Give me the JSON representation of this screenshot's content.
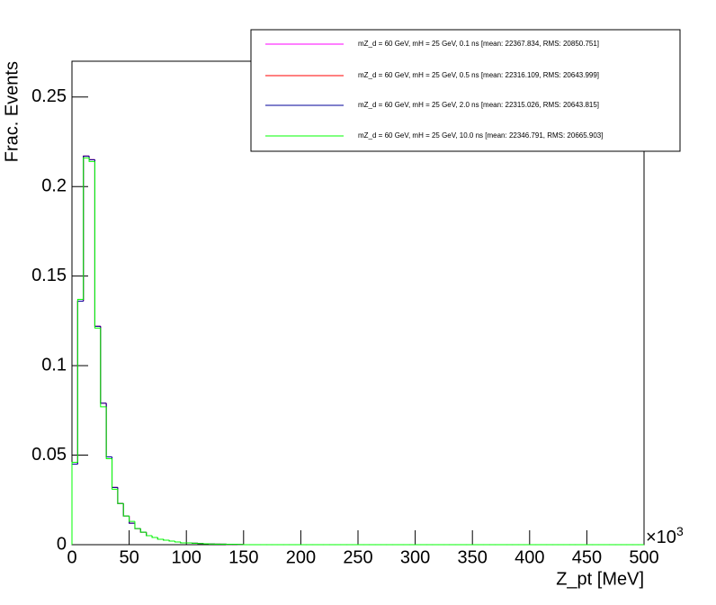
{
  "chart_data": {
    "type": "histogram",
    "x_label": "Z_pt [MeV]",
    "y_label": "Frac. Events",
    "x_scale_label": {
      "base": "×10",
      "exponent": "3"
    },
    "xlim": [
      0,
      500
    ],
    "xticks": [
      0,
      50,
      100,
      150,
      200,
      250,
      300,
      350,
      400,
      450,
      500
    ],
    "ylim": [
      0,
      0.27
    ],
    "yticks": [
      0,
      0.05,
      0.1,
      0.15,
      0.2,
      0.25
    ],
    "bins": [
      0,
      5,
      10,
      15,
      20,
      25,
      30,
      35,
      40,
      45,
      50,
      55,
      60,
      65,
      70,
      75,
      80,
      85,
      90,
      95,
      100,
      105,
      110,
      115,
      120,
      125,
      130,
      135,
      140,
      145,
      150,
      155,
      160,
      165,
      170,
      175,
      180,
      185,
      190,
      195,
      200,
      205,
      210,
      215,
      220,
      225,
      230,
      235,
      240,
      245,
      250,
      255,
      260,
      265,
      270,
      275,
      280,
      285,
      290,
      295,
      300,
      305,
      310,
      315,
      320,
      325,
      330,
      335,
      340,
      345,
      350,
      355,
      360,
      365,
      370,
      375,
      380,
      385,
      390,
      395,
      400,
      405,
      410,
      415,
      420,
      425,
      430,
      435,
      440,
      445,
      450,
      455,
      460,
      465,
      470,
      475,
      480,
      485,
      490,
      495,
      500
    ],
    "series": [
      {
        "name": "mZ_d = 60 GeV, mH = 25 GeV, 0.1 ns [mean: 22367.834, RMS: 20850.751]",
        "color": "#ff00ff",
        "values": [
          0.045,
          0.136,
          0.217,
          0.215,
          0.122,
          0.079,
          0.049,
          0.032,
          0.023,
          0.016,
          0.012,
          0.009,
          0.007,
          0.005,
          0.004,
          0.003,
          0.0025,
          0.002,
          0.0015,
          0.001,
          0.001,
          0.0008,
          0.0006,
          0.0005,
          0.0004,
          0.0003,
          0.0003,
          0.0002,
          0.0002,
          0.0001,
          0,
          0,
          0,
          0,
          0,
          0,
          0,
          0,
          0,
          0,
          0,
          0,
          0,
          0,
          0,
          0,
          0,
          0,
          0,
          0,
          0,
          0,
          0,
          0,
          0,
          0,
          0,
          0,
          0,
          0,
          0,
          0,
          0,
          0,
          0,
          0,
          0,
          0,
          0,
          0,
          0,
          0,
          0,
          0,
          0,
          0,
          0,
          0,
          0,
          0,
          0,
          0,
          0,
          0,
          0,
          0,
          0,
          0,
          0,
          0,
          0,
          0,
          0,
          0,
          0,
          0,
          0,
          0,
          0,
          0
        ]
      },
      {
        "name": "mZ_d = 60 GeV, mH = 25 GeV, 0.5 ns [mean: 22316.109, RMS: 20643.999]",
        "color": "#ff0000",
        "values": [
          0.045,
          0.136,
          0.217,
          0.215,
          0.122,
          0.079,
          0.049,
          0.032,
          0.023,
          0.016,
          0.012,
          0.009,
          0.007,
          0.005,
          0.004,
          0.003,
          0.0025,
          0.002,
          0.0015,
          0.001,
          0.001,
          0.0008,
          0.0006,
          0.0005,
          0.0004,
          0.0003,
          0.0003,
          0.0002,
          0.0002,
          0.0001,
          0,
          0,
          0,
          0,
          0,
          0,
          0,
          0,
          0,
          0,
          0,
          0,
          0,
          0,
          0,
          0,
          0,
          0,
          0,
          0,
          0,
          0,
          0,
          0,
          0,
          0,
          0,
          0,
          0,
          0,
          0,
          0,
          0,
          0,
          0,
          0,
          0,
          0,
          0,
          0,
          0,
          0,
          0,
          0,
          0,
          0,
          0,
          0,
          0,
          0,
          0,
          0,
          0,
          0,
          0,
          0,
          0,
          0,
          0,
          0,
          0,
          0,
          0,
          0,
          0,
          0,
          0,
          0,
          0,
          0
        ]
      },
      {
        "name": "mZ_d = 60 GeV, mH = 25 GeV, 2.0 ns [mean: 22315.026, RMS: 20643.815]",
        "color": "#000099",
        "values": [
          0.045,
          0.136,
          0.217,
          0.215,
          0.122,
          0.079,
          0.049,
          0.032,
          0.023,
          0.016,
          0.012,
          0.009,
          0.007,
          0.005,
          0.004,
          0.003,
          0.0025,
          0.002,
          0.0015,
          0.001,
          0.001,
          0.0008,
          0.0006,
          0.0005,
          0.0004,
          0.0003,
          0.0003,
          0.0002,
          0.0002,
          0.0001,
          0,
          0,
          0,
          0,
          0,
          0,
          0,
          0,
          0,
          0,
          0,
          0,
          0,
          0,
          0,
          0,
          0,
          0,
          0,
          0,
          0,
          0,
          0,
          0,
          0,
          0,
          0,
          0,
          0,
          0,
          0,
          0,
          0,
          0,
          0,
          0,
          0,
          0,
          0,
          0,
          0,
          0,
          0,
          0,
          0,
          0,
          0,
          0,
          0,
          0,
          0,
          0,
          0,
          0,
          0,
          0,
          0,
          0,
          0,
          0,
          0,
          0,
          0,
          0,
          0,
          0,
          0,
          0,
          0,
          0
        ]
      },
      {
        "name": "mZ_d = 60 GeV, mH = 25 GeV, 10.0 ns [mean: 22346.791, RMS: 20665.903]",
        "color": "#00ff00",
        "values": [
          0.046,
          0.137,
          0.216,
          0.214,
          0.121,
          0.077,
          0.048,
          0.031,
          0.023,
          0.016,
          0.013,
          0.009,
          0.007,
          0.005,
          0.004,
          0.003,
          0.0025,
          0.002,
          0.0015,
          0.001,
          0.001,
          0.0008,
          0.0006,
          0.0005,
          0.0004,
          0.0003,
          0.0003,
          0.0002,
          0.0002,
          0.0001,
          0,
          0,
          0,
          0,
          0,
          0,
          0,
          0,
          0,
          0,
          0,
          0,
          0,
          0,
          0,
          0,
          0,
          0,
          0,
          0,
          0,
          0,
          0,
          0,
          0,
          0,
          0,
          0,
          0,
          0,
          0,
          0,
          0,
          0,
          0,
          0,
          0,
          0,
          0,
          0,
          0,
          0,
          0,
          0,
          0,
          0,
          0,
          0,
          0,
          0,
          0,
          0,
          0,
          0,
          0,
          0,
          0,
          0,
          0,
          0,
          0,
          0,
          0,
          0,
          0,
          0,
          0,
          0,
          0,
          0
        ]
      }
    ]
  }
}
